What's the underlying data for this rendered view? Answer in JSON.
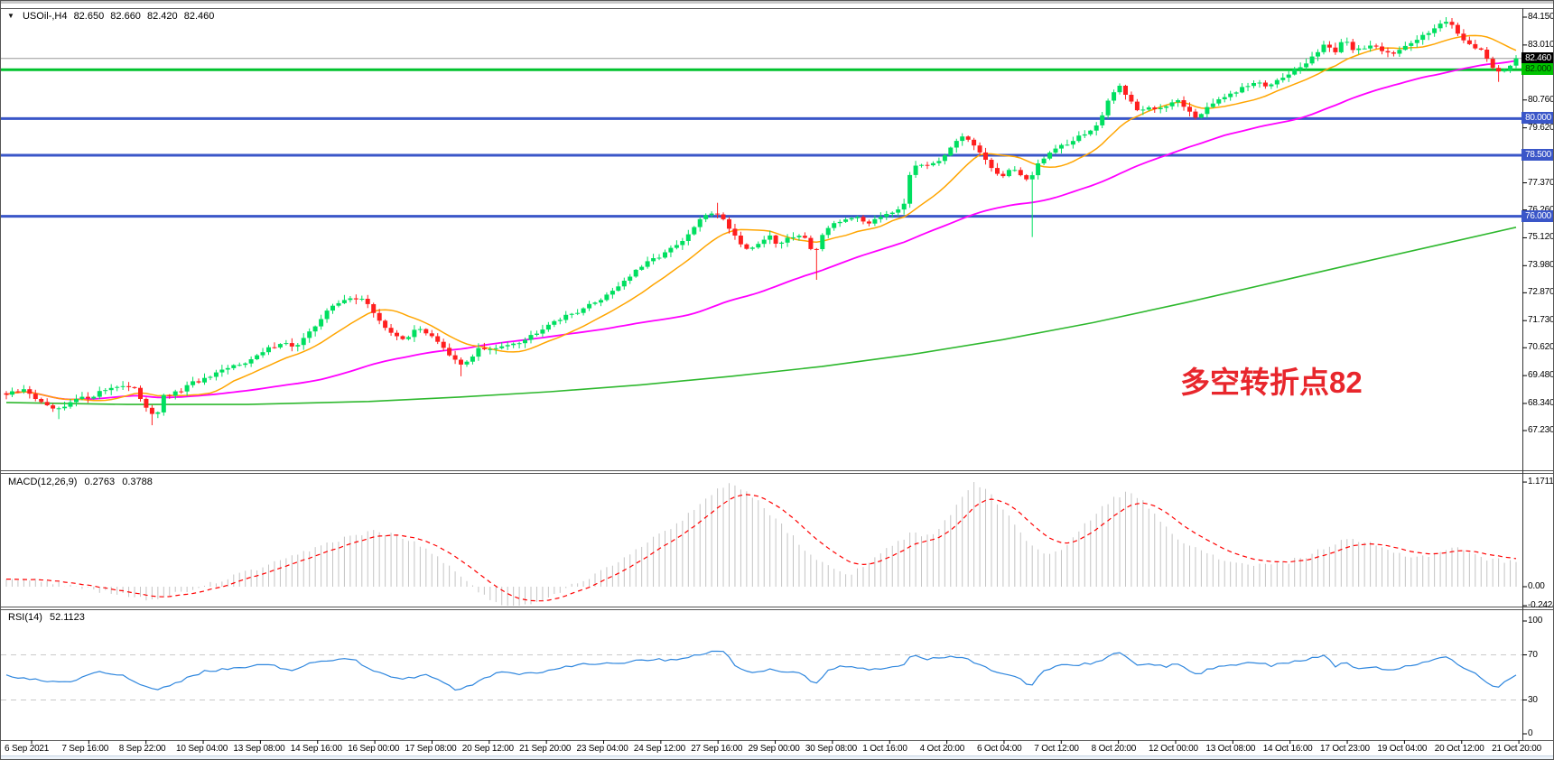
{
  "symbol_bar": {
    "dropdown_icon": "▼",
    "symbol_timeframe": "USOil-,H4",
    "open": "82.650",
    "high": "82.660",
    "low": "82.420",
    "close": "82.460"
  },
  "annotation": {
    "text": "多空转折点82",
    "color": "#e8262c"
  },
  "indicators": {
    "macd": {
      "label": "MACD(12,26,9)",
      "value_main": "0.2763",
      "value_signal": "0.3788",
      "axis_labels": [
        "1.1711",
        "0.00",
        "-0.2424"
      ]
    },
    "rsi": {
      "label": "RSI(14)",
      "value": "52.1123",
      "axis_labels": [
        "100",
        "70",
        "30",
        "0"
      ]
    }
  },
  "price_axis": {
    "tick_labels": [
      "84.150",
      "83.010",
      "81.870",
      "80.760",
      "79.620",
      "78.480",
      "77.370",
      "76.260",
      "75.120",
      "73.980",
      "72.870",
      "71.730",
      "70.620",
      "69.480",
      "68.340",
      "67.230"
    ],
    "badges": [
      {
        "label": "82.460",
        "bg": "#000000",
        "fg": "#ffffff"
      },
      {
        "label": "82.000",
        "bg": "#00c400",
        "fg": "#003300"
      },
      {
        "label": "80.000",
        "bg": "#3a56c8",
        "fg": "#ffffff"
      },
      {
        "label": "78.500",
        "bg": "#3a56c8",
        "fg": "#ffffff"
      },
      {
        "label": "76.000",
        "bg": "#3a56c8",
        "fg": "#ffffff"
      }
    ]
  },
  "time_axis": {
    "labels": [
      "6 Sep 2021",
      "7 Sep 16:00",
      "8 Sep 22:00",
      "10 Sep 04:00",
      "13 Sep 08:00",
      "14 Sep 16:00",
      "16 Sep 00:00",
      "17 Sep 08:00",
      "20 Sep 12:00",
      "21 Sep 20:00",
      "23 Sep 04:00",
      "24 Sep 12:00",
      "27 Sep 16:00",
      "29 Sep 00:00",
      "30 Sep 08:00",
      "1 Oct 16:00",
      "4 Oct 20:00",
      "6 Oct 04:00",
      "7 Oct 12:00",
      "8 Oct 20:00",
      "12 Oct 00:00",
      "13 Oct 08:00",
      "14 Oct 16:00",
      "17 Oct 23:00",
      "19 Oct 04:00",
      "20 Oct 12:00",
      "21 Oct 20:00"
    ]
  },
  "colors": {
    "up": "#00df60",
    "down": "#ff1f1f",
    "ma_fast": "#ffa500",
    "ma_mid": "#ff00ff",
    "ma_slow": "#2eb82e",
    "hline_blue": "#3a56c8",
    "hline_green": "#00c22d",
    "price_line": "#999999",
    "macd_hist": "#c4c4c4",
    "macd_signal": "#ff0000",
    "rsi_line": "#2e86de",
    "rsi_level": "#c9c9c9",
    "annotation": "#e8262c",
    "axis_line": "#333333"
  },
  "chart_data": {
    "type": "candlestick",
    "symbol": "USOil-",
    "timeframe": "H4",
    "title": "USOil- H4 with MACD(12,26,9) and RSI(14)",
    "ylim": [
      67.0,
      84.5
    ],
    "current_price": 82.46,
    "horizontal_lines": [
      {
        "price": 82.0,
        "color": "#00c22d",
        "width": 3
      },
      {
        "price": 80.0,
        "color": "#3a56c8",
        "width": 3
      },
      {
        "price": 78.5,
        "color": "#3a56c8",
        "width": 3
      },
      {
        "price": 76.0,
        "color": "#3a56c8",
        "width": 3
      }
    ],
    "price_path_anchors": [
      [
        0,
        68.7
      ],
      [
        0.013,
        68.9
      ],
      [
        0.026,
        68.2
      ],
      [
        0.036,
        68.05
      ],
      [
        0.046,
        68.5
      ],
      [
        0.055,
        68.6
      ],
      [
        0.065,
        68.9
      ],
      [
        0.075,
        69.1
      ],
      [
        0.085,
        68.9
      ],
      [
        0.094,
        68.1
      ],
      [
        0.099,
        67.8
      ],
      [
        0.104,
        68.6
      ],
      [
        0.114,
        68.8
      ],
      [
        0.124,
        69.2
      ],
      [
        0.133,
        69.35
      ],
      [
        0.143,
        69.65
      ],
      [
        0.153,
        69.95
      ],
      [
        0.163,
        70.15
      ],
      [
        0.173,
        70.55
      ],
      [
        0.182,
        70.85
      ],
      [
        0.192,
        70.65
      ],
      [
        0.202,
        71.3
      ],
      [
        0.212,
        72.15
      ],
      [
        0.221,
        72.45
      ],
      [
        0.228,
        72.7
      ],
      [
        0.236,
        72.6
      ],
      [
        0.244,
        72.0
      ],
      [
        0.254,
        71.2
      ],
      [
        0.264,
        71.0
      ],
      [
        0.273,
        71.4
      ],
      [
        0.283,
        71.1
      ],
      [
        0.293,
        70.3
      ],
      [
        0.301,
        69.9
      ],
      [
        0.306,
        70.1
      ],
      [
        0.313,
        70.6
      ],
      [
        0.322,
        70.5
      ],
      [
        0.332,
        70.8
      ],
      [
        0.342,
        70.9
      ],
      [
        0.352,
        71.3
      ],
      [
        0.361,
        71.7
      ],
      [
        0.371,
        71.9
      ],
      [
        0.381,
        72.2
      ],
      [
        0.391,
        72.5
      ],
      [
        0.4,
        72.9
      ],
      [
        0.41,
        73.4
      ],
      [
        0.42,
        73.9
      ],
      [
        0.43,
        74.3
      ],
      [
        0.439,
        74.6
      ],
      [
        0.449,
        75.0
      ],
      [
        0.456,
        75.6
      ],
      [
        0.464,
        76.1
      ],
      [
        0.47,
        76.2
      ],
      [
        0.477,
        75.7
      ],
      [
        0.485,
        75.0
      ],
      [
        0.492,
        74.6
      ],
      [
        0.498,
        74.9
      ],
      [
        0.505,
        75.2
      ],
      [
        0.511,
        74.8
      ],
      [
        0.518,
        75.1
      ],
      [
        0.524,
        75.3
      ],
      [
        0.531,
        75.0
      ],
      [
        0.535,
        74.4
      ],
      [
        0.54,
        75.2
      ],
      [
        0.547,
        75.6
      ],
      [
        0.553,
        75.8
      ],
      [
        0.561,
        76.0
      ],
      [
        0.57,
        75.7
      ],
      [
        0.578,
        76.0
      ],
      [
        0.586,
        76.2
      ],
      [
        0.594,
        76.4
      ],
      [
        0.6,
        78.2
      ],
      [
        0.607,
        78.0
      ],
      [
        0.613,
        78.2
      ],
      [
        0.62,
        78.4
      ],
      [
        0.626,
        78.9
      ],
      [
        0.633,
        79.2
      ],
      [
        0.639,
        79.0
      ],
      [
        0.646,
        78.5
      ],
      [
        0.652,
        78.0
      ],
      [
        0.659,
        77.6
      ],
      [
        0.665,
        77.9
      ],
      [
        0.672,
        77.7
      ],
      [
        0.678,
        77.5
      ],
      [
        0.685,
        78.3
      ],
      [
        0.691,
        78.6
      ],
      [
        0.698,
        78.9
      ],
      [
        0.704,
        79.0
      ],
      [
        0.711,
        79.3
      ],
      [
        0.718,
        79.5
      ],
      [
        0.724,
        79.8
      ],
      [
        0.73,
        80.7
      ],
      [
        0.737,
        81.4
      ],
      [
        0.743,
        80.9
      ],
      [
        0.75,
        80.3
      ],
      [
        0.756,
        80.5
      ],
      [
        0.763,
        80.3
      ],
      [
        0.77,
        80.6
      ],
      [
        0.776,
        80.8
      ],
      [
        0.782,
        80.4
      ],
      [
        0.789,
        79.95
      ],
      [
        0.795,
        80.5
      ],
      [
        0.802,
        80.7
      ],
      [
        0.808,
        80.9
      ],
      [
        0.815,
        81.1
      ],
      [
        0.821,
        81.3
      ],
      [
        0.828,
        81.5
      ],
      [
        0.834,
        81.3
      ],
      [
        0.841,
        81.6
      ],
      [
        0.847,
        81.8
      ],
      [
        0.854,
        82.0
      ],
      [
        0.86,
        82.2
      ],
      [
        0.867,
        82.6
      ],
      [
        0.873,
        83.1
      ],
      [
        0.88,
        82.7
      ],
      [
        0.886,
        83.2
      ],
      [
        0.893,
        82.8
      ],
      [
        0.899,
        82.9
      ],
      [
        0.906,
        83.0
      ],
      [
        0.912,
        82.8
      ],
      [
        0.919,
        82.7
      ],
      [
        0.926,
        82.9
      ],
      [
        0.932,
        83.1
      ],
      [
        0.938,
        83.4
      ],
      [
        0.945,
        83.7
      ],
      [
        0.951,
        84.0
      ],
      [
        0.958,
        83.8
      ],
      [
        0.964,
        83.3
      ],
      [
        0.971,
        83.0
      ],
      [
        0.977,
        82.8
      ],
      [
        0.984,
        82.0
      ],
      [
        0.992,
        81.95
      ],
      [
        1,
        82.46
      ]
    ],
    "wick_spikes": [
      {
        "f": 0.036,
        "low": 67.7
      },
      {
        "f": 0.098,
        "low": 67.45
      },
      {
        "f": 0.3,
        "low": 69.45
      },
      {
        "f": 0.472,
        "high": 76.55
      },
      {
        "f": 0.535,
        "low": 73.4
      },
      {
        "f": 0.678,
        "low": 75.15
      },
      {
        "f": 0.952,
        "high": 84.15
      },
      {
        "f": 0.99,
        "low": 81.5
      }
    ],
    "moving_averages": {
      "fast_period": 13,
      "mid_period": 55,
      "slow_anchors": [
        [
          0,
          68.38
        ],
        [
          0.08,
          68.3
        ],
        [
          0.16,
          68.3
        ],
        [
          0.24,
          68.42
        ],
        [
          0.3,
          68.6
        ],
        [
          0.36,
          68.82
        ],
        [
          0.42,
          69.1
        ],
        [
          0.48,
          69.45
        ],
        [
          0.54,
          69.85
        ],
        [
          0.6,
          70.35
        ],
        [
          0.66,
          70.95
        ],
        [
          0.72,
          71.65
        ],
        [
          0.78,
          72.45
        ],
        [
          0.84,
          73.3
        ],
        [
          0.9,
          74.15
        ],
        [
          0.95,
          74.85
        ],
        [
          1,
          75.55
        ]
      ]
    },
    "macd": {
      "axis_max": 1.1711,
      "axis_min": -0.2424,
      "last_main": 0.2763,
      "last_signal": 0.3788,
      "anchors": [
        [
          0,
          0.06
        ],
        [
          0.015,
          0.09
        ],
        [
          0.03,
          0.05
        ],
        [
          0.045,
          0
        ],
        [
          0.06,
          -0.05
        ],
        [
          0.075,
          -0.08
        ],
        [
          0.09,
          -0.13
        ],
        [
          0.1,
          -0.15
        ],
        [
          0.11,
          -0.09
        ],
        [
          0.125,
          -0.02
        ],
        [
          0.14,
          0.06
        ],
        [
          0.155,
          0.14
        ],
        [
          0.17,
          0.22
        ],
        [
          0.185,
          0.3
        ],
        [
          0.2,
          0.4
        ],
        [
          0.215,
          0.5
        ],
        [
          0.23,
          0.58
        ],
        [
          0.245,
          0.62
        ],
        [
          0.26,
          0.57
        ],
        [
          0.275,
          0.45
        ],
        [
          0.29,
          0.28
        ],
        [
          0.3,
          0.12
        ],
        [
          0.31,
          -0.02
        ],
        [
          0.32,
          -0.13
        ],
        [
          0.33,
          -0.21
        ],
        [
          0.34,
          -0.24
        ],
        [
          0.35,
          -0.18
        ],
        [
          0.36,
          -0.1
        ],
        [
          0.37,
          -0.02
        ],
        [
          0.385,
          0.1
        ],
        [
          0.4,
          0.24
        ],
        [
          0.415,
          0.4
        ],
        [
          0.43,
          0.55
        ],
        [
          0.445,
          0.72
        ],
        [
          0.458,
          0.9
        ],
        [
          0.468,
          1.05
        ],
        [
          0.475,
          1.13
        ],
        [
          0.482,
          1.15
        ],
        [
          0.49,
          1.08
        ],
        [
          0.5,
          0.92
        ],
        [
          0.512,
          0.72
        ],
        [
          0.524,
          0.5
        ],
        [
          0.536,
          0.32
        ],
        [
          0.548,
          0.18
        ],
        [
          0.558,
          0.14
        ],
        [
          0.568,
          0.22
        ],
        [
          0.578,
          0.35
        ],
        [
          0.59,
          0.5
        ],
        [
          0.6,
          0.6
        ],
        [
          0.608,
          0.55
        ],
        [
          0.616,
          0.62
        ],
        [
          0.625,
          0.8
        ],
        [
          0.633,
          1.0
        ],
        [
          0.64,
          1.17
        ],
        [
          0.648,
          1.1
        ],
        [
          0.656,
          0.95
        ],
        [
          0.664,
          0.78
        ],
        [
          0.672,
          0.6
        ],
        [
          0.68,
          0.45
        ],
        [
          0.69,
          0.35
        ],
        [
          0.7,
          0.42
        ],
        [
          0.71,
          0.6
        ],
        [
          0.72,
          0.8
        ],
        [
          0.73,
          0.95
        ],
        [
          0.74,
          1.05
        ],
        [
          0.748,
          1.02
        ],
        [
          0.756,
          0.9
        ],
        [
          0.766,
          0.72
        ],
        [
          0.776,
          0.55
        ],
        [
          0.79,
          0.4
        ],
        [
          0.805,
          0.3
        ],
        [
          0.82,
          0.26
        ],
        [
          0.835,
          0.24
        ],
        [
          0.85,
          0.28
        ],
        [
          0.862,
          0.35
        ],
        [
          0.875,
          0.45
        ],
        [
          0.888,
          0.52
        ],
        [
          0.9,
          0.5
        ],
        [
          0.912,
          0.42
        ],
        [
          0.924,
          0.36
        ],
        [
          0.936,
          0.33
        ],
        [
          0.948,
          0.38
        ],
        [
          0.958,
          0.45
        ],
        [
          0.968,
          0.4
        ],
        [
          0.976,
          0.32
        ],
        [
          1,
          0.2763
        ]
      ]
    },
    "rsi": {
      "levels": [
        70,
        30
      ],
      "last": 52.1123,
      "anchors": [
        [
          0,
          52
        ],
        [
          0.02,
          48
        ],
        [
          0.039,
          45
        ],
        [
          0.059,
          55
        ],
        [
          0.078,
          52
        ],
        [
          0.098,
          38
        ],
        [
          0.107,
          42
        ],
        [
          0.13,
          55
        ],
        [
          0.15,
          58
        ],
        [
          0.169,
          62
        ],
        [
          0.189,
          57
        ],
        [
          0.208,
          65
        ],
        [
          0.228,
          67
        ],
        [
          0.244,
          55
        ],
        [
          0.26,
          48
        ],
        [
          0.28,
          52
        ],
        [
          0.299,
          38
        ],
        [
          0.309,
          44
        ],
        [
          0.326,
          55
        ],
        [
          0.345,
          53
        ],
        [
          0.365,
          58
        ],
        [
          0.384,
          62
        ],
        [
          0.404,
          63
        ],
        [
          0.423,
          65
        ],
        [
          0.443,
          66
        ],
        [
          0.464,
          72
        ],
        [
          0.475,
          73
        ],
        [
          0.485,
          58
        ],
        [
          0.495,
          55
        ],
        [
          0.505,
          57
        ],
        [
          0.514,
          54
        ],
        [
          0.524,
          56
        ],
        [
          0.531,
          50
        ],
        [
          0.535,
          42
        ],
        [
          0.544,
          57
        ],
        [
          0.553,
          60
        ],
        [
          0.563,
          58
        ],
        [
          0.573,
          57
        ],
        [
          0.586,
          60
        ],
        [
          0.596,
          62
        ],
        [
          0.6,
          70
        ],
        [
          0.612,
          66
        ],
        [
          0.622,
          68
        ],
        [
          0.632,
          69
        ],
        [
          0.641,
          64
        ],
        [
          0.651,
          58
        ],
        [
          0.661,
          52
        ],
        [
          0.671,
          50
        ],
        [
          0.678,
          41
        ],
        [
          0.687,
          57
        ],
        [
          0.697,
          60
        ],
        [
          0.706,
          61
        ],
        [
          0.716,
          62
        ],
        [
          0.726,
          64
        ],
        [
          0.732,
          70
        ],
        [
          0.739,
          72
        ],
        [
          0.749,
          60
        ],
        [
          0.758,
          62
        ],
        [
          0.768,
          60
        ],
        [
          0.778,
          62
        ],
        [
          0.788,
          52
        ],
        [
          0.797,
          58
        ],
        [
          0.807,
          60
        ],
        [
          0.817,
          62
        ],
        [
          0.827,
          64
        ],
        [
          0.837,
          60
        ],
        [
          0.846,
          63
        ],
        [
          0.856,
          64
        ],
        [
          0.866,
          68
        ],
        [
          0.874,
          70
        ],
        [
          0.88,
          60
        ],
        [
          0.887,
          65
        ],
        [
          0.893,
          58
        ],
        [
          0.902,
          60
        ],
        [
          0.911,
          58
        ],
        [
          0.919,
          56
        ],
        [
          0.928,
          60
        ],
        [
          0.938,
          63
        ],
        [
          0.947,
          66
        ],
        [
          0.955,
          68
        ],
        [
          0.964,
          58
        ],
        [
          0.972,
          55
        ],
        [
          0.98,
          45
        ],
        [
          0.988,
          41
        ],
        [
          1,
          52.1
        ]
      ]
    }
  }
}
